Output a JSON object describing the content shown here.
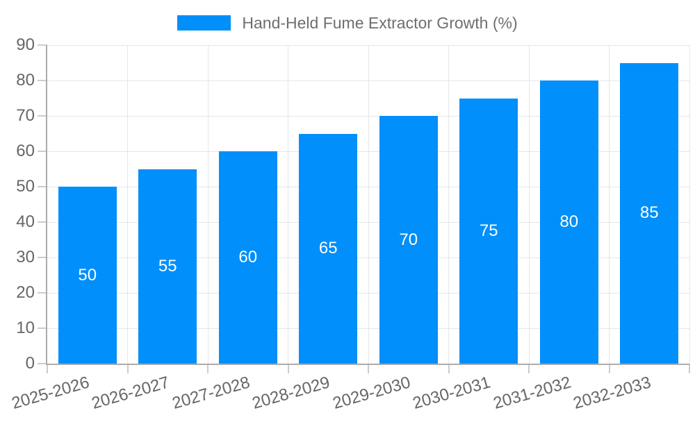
{
  "legend": {
    "label": "Hand-Held Fume Extractor Growth (%)"
  },
  "chart_data": {
    "type": "bar",
    "title": "Hand-Held Fume Extractor Growth (%)",
    "categories": [
      "2025-2026",
      "2026-2027",
      "2027-2028",
      "2028-2029",
      "2029-2030",
      "2030-2031",
      "2031-2032",
      "2032-2033"
    ],
    "values": [
      50,
      55,
      60,
      65,
      70,
      75,
      80,
      85
    ],
    "value_labels_shown": true,
    "xlabel": "",
    "ylabel": "",
    "ylim": [
      0,
      90
    ],
    "yticks": [
      0,
      10,
      20,
      30,
      40,
      50,
      60,
      70,
      80,
      90
    ],
    "grid": "horizontal and vertical gridlines on",
    "legend_position": "top-center",
    "x_tick_label_rotation_deg": -16,
    "colors": {
      "bar": "#008FFB",
      "value_label": "#FFFFFF",
      "axis_text": "#666666",
      "legend_text": "#6E6E6E",
      "gridline": "#E6E6E6",
      "axis_line": "#ABABAB",
      "tick": "#CCCCCC",
      "background": "#FFFFFF"
    }
  }
}
